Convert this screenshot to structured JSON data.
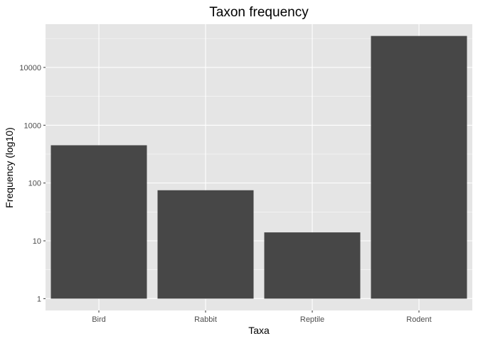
{
  "chart_data": {
    "type": "bar",
    "title": "Taxon frequency",
    "xlabel": "Taxa",
    "ylabel": "Frequency (log10)",
    "categories": [
      "Bird",
      "Rabbit",
      "Reptile",
      "Rodent"
    ],
    "values": [
      450,
      75,
      14,
      35000
    ],
    "y_scale": "log10",
    "ylim": [
      1,
      35000
    ],
    "y_ticks": [
      1,
      10,
      100,
      1000,
      10000
    ],
    "y_tick_labels": [
      "1",
      "10",
      "100",
      "1000",
      "10000"
    ],
    "grid": true,
    "colors": {
      "bar": "#474747",
      "panel": "#e5e5e5",
      "grid": "#ffffff",
      "tick_text": "#4d4d4d"
    }
  }
}
